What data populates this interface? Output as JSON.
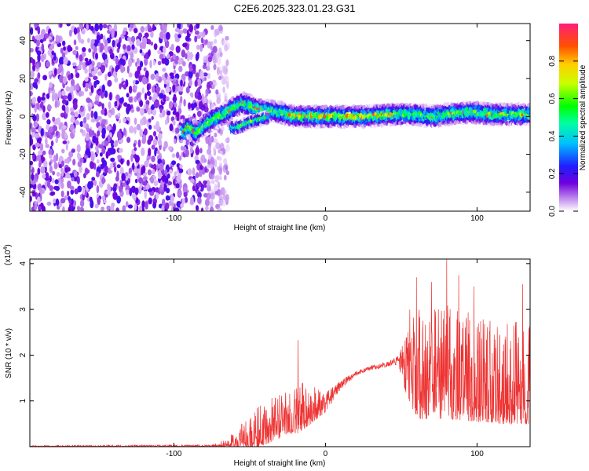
{
  "title": "C2E6.2025.323.01.23.G31",
  "chart_data": [
    {
      "type": "heatmap",
      "name": "spectrogram",
      "xlabel": "Height of straight line (km)",
      "ylabel": "Frequency (Hz)",
      "xlim": [
        -195,
        135
      ],
      "ylim": [
        -50,
        49
      ],
      "x_ticks": [
        -100,
        0,
        100
      ],
      "y_ticks": [
        40,
        20,
        0,
        -20,
        -40
      ],
      "noise_region_x": [
        -195,
        -70
      ],
      "track": [
        {
          "x": -93,
          "f": -8
        },
        {
          "x": -90,
          "f": -5
        },
        {
          "x": -85,
          "f": -9
        },
        {
          "x": -80,
          "f": -5
        },
        {
          "x": -75,
          "f": -2
        },
        {
          "x": -70,
          "f": 0
        },
        {
          "x": -65,
          "f": 2
        },
        {
          "x": -60,
          "f": 5
        },
        {
          "x": -55,
          "f": 7
        },
        {
          "x": -50,
          "f": 6
        },
        {
          "x": -45,
          "f": 4
        },
        {
          "x": -40,
          "f": 3
        },
        {
          "x": -35,
          "f": 3
        },
        {
          "x": -30,
          "f": 2
        },
        {
          "x": -25,
          "f": 1
        },
        {
          "x": -20,
          "f": 0
        },
        {
          "x": -10,
          "f": 0
        },
        {
          "x": 0,
          "f": 0
        },
        {
          "x": 10,
          "f": 0
        },
        {
          "x": 20,
          "f": 0
        },
        {
          "x": 30,
          "f": 0
        },
        {
          "x": 40,
          "f": 1
        },
        {
          "x": 50,
          "f": 1
        },
        {
          "x": 60,
          "f": 1
        },
        {
          "x": 70,
          "f": 0
        },
        {
          "x": 80,
          "f": 1
        },
        {
          "x": 90,
          "f": 2
        },
        {
          "x": 100,
          "f": 2
        },
        {
          "x": 110,
          "f": 1
        },
        {
          "x": 120,
          "f": 1
        },
        {
          "x": 130,
          "f": 1
        }
      ],
      "split_track": [
        {
          "x": -60,
          "f": -6
        },
        {
          "x": -55,
          "f": -5
        },
        {
          "x": -50,
          "f": -3
        },
        {
          "x": -45,
          "f": -2
        },
        {
          "x": -40,
          "f": -1
        }
      ],
      "colorbar": {
        "label": "Normalized spectral amplitude",
        "range": [
          0.0,
          1.0
        ],
        "ticks": [
          0.0,
          0.2,
          0.4,
          0.6,
          0.8
        ]
      }
    },
    {
      "type": "line",
      "name": "snr",
      "xlabel": "Height of straight line (km)",
      "ylabel": "SNR (10 * v/v)",
      "scale_base": "(x10",
      "scale_exp": "4",
      "scale_close": ")",
      "xlim": [
        -195,
        135
      ],
      "ylim": [
        0,
        4.1
      ],
      "x_ticks": [
        -100,
        0,
        100
      ],
      "y_ticks": [
        1,
        2,
        3,
        4
      ],
      "color": "#ee3333",
      "envelope": [
        {
          "x": -195,
          "base": 0.01,
          "spread": 0.02
        },
        {
          "x": -75,
          "base": 0.02,
          "spread": 0.03
        },
        {
          "x": -65,
          "base": 0.05,
          "spread": 0.15
        },
        {
          "x": -55,
          "base": 0.15,
          "spread": 0.45
        },
        {
          "x": -45,
          "base": 0.3,
          "spread": 0.7
        },
        {
          "x": -35,
          "base": 0.45,
          "spread": 0.8
        },
        {
          "x": -25,
          "base": 0.6,
          "spread": 0.75
        },
        {
          "x": -18,
          "base": 0.7,
          "spread": 0.9
        },
        {
          "x": -10,
          "base": 0.8,
          "spread": 0.7
        },
        {
          "x": 0,
          "base": 0.95,
          "spread": 0.45
        },
        {
          "x": 10,
          "base": 1.35,
          "spread": 0.2
        },
        {
          "x": 20,
          "base": 1.6,
          "spread": 0.1
        },
        {
          "x": 30,
          "base": 1.72,
          "spread": 0.1
        },
        {
          "x": 40,
          "base": 1.8,
          "spread": 0.12
        },
        {
          "x": 48,
          "base": 1.9,
          "spread": 0.2
        },
        {
          "x": 55,
          "base": 1.7,
          "spread": 1.7
        },
        {
          "x": 62,
          "base": 1.5,
          "spread": 2.0
        },
        {
          "x": 80,
          "base": 1.5,
          "spread": 2.0
        },
        {
          "x": 100,
          "base": 1.4,
          "spread": 1.9
        },
        {
          "x": 120,
          "base": 1.3,
          "spread": 1.8
        },
        {
          "x": 135,
          "base": 1.3,
          "spread": 1.8
        }
      ],
      "peaks": [
        {
          "x": -18,
          "y": 2.33
        },
        {
          "x": 60,
          "y": 3.7
        },
        {
          "x": 70,
          "y": 3.6
        },
        {
          "x": 80,
          "y": 4.1
        },
        {
          "x": 88,
          "y": 3.75
        },
        {
          "x": 98,
          "y": 3.5
        },
        {
          "x": 130,
          "y": 3.55
        }
      ]
    }
  ]
}
